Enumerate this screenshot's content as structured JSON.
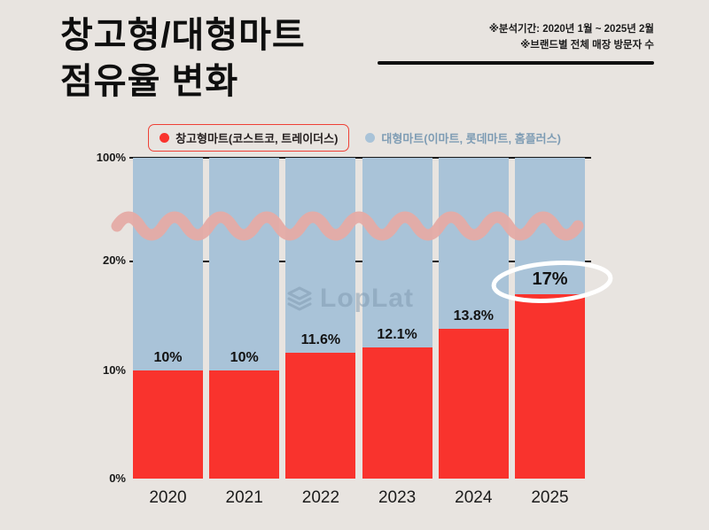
{
  "title": {
    "line1": "창고형/대형마트",
    "line2": "점유율 변화"
  },
  "annotation": {
    "line1": "※분석기간: 2020년 1월 ~ 2025년 2월",
    "line2": "※브랜드별 전체 매장 방문자 수"
  },
  "legend": {
    "warehouse": {
      "label": "창고형마트(코스트코, 트레이더스)",
      "color": "#f9332d"
    },
    "hypermarket": {
      "label": "대형마트(이마트, 롯데마트, 홈플러스)",
      "color": "#a9c3d8"
    }
  },
  "watermark": {
    "text": "LopLat"
  },
  "colors": {
    "background": "#e8e4e0",
    "warehouse_red": "#f9332d",
    "hypermarket_blue": "#a9c3d8",
    "ribbon_pink": "#e5aba5",
    "highlight_ellipse": "#ffffff"
  },
  "chart_data": {
    "type": "bar",
    "stacked": true,
    "title": "창고형/대형마트 점유율 변화",
    "categories": [
      "2020",
      "2021",
      "2022",
      "2023",
      "2024",
      "2025"
    ],
    "series": [
      {
        "name": "창고형마트(코스트코, 트레이더스)",
        "color": "#f9332d",
        "values": [
          10,
          10,
          11.6,
          12.1,
          13.8,
          17
        ]
      },
      {
        "name": "대형마트(이마트, 롯데마트, 홈플러스)",
        "color": "#a9c3d8",
        "values": [
          90,
          90,
          88.4,
          87.9,
          86.2,
          83
        ]
      }
    ],
    "data_labels": [
      "10%",
      "10%",
      "11.6%",
      "12.1%",
      "13.8%",
      "17%"
    ],
    "highlighted_index": 5,
    "y_ticks": [
      "0%",
      "10%",
      "20%",
      "100%"
    ],
    "axis_break_between": [
      "20%",
      "100%"
    ],
    "ylim": [
      0,
      100
    ],
    "grid": "horizontal-lines-at-20-and-100",
    "legend_position": "top-center"
  }
}
